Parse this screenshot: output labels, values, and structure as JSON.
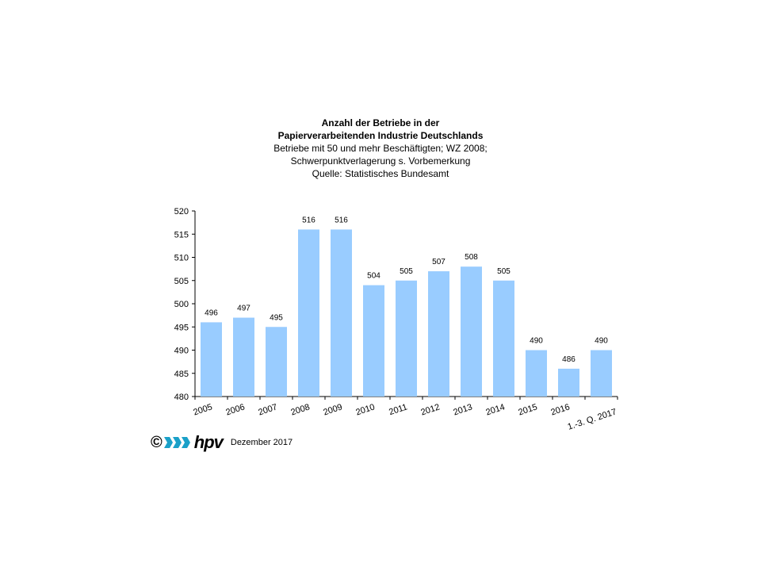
{
  "chart_data": {
    "type": "bar",
    "title": "Anzahl der Betriebe in der",
    "title_line2": "Papierverarbeitenden Industrie Deutschlands",
    "subtitle_lines": [
      "Betriebe mit 50 und mehr Beschäftigten;  WZ 2008;",
      "Schwerpunktverlagerung   s. Vorbemerkung",
      "Quelle:  Statistisches Bundesamt"
    ],
    "categories": [
      "2005",
      "2006",
      "2007",
      "2008",
      "2009",
      "2010",
      "2011",
      "2012",
      "2013",
      "2014",
      "2015",
      "2016",
      "1.-3. Q. 2017"
    ],
    "values": [
      496,
      497,
      495,
      516,
      516,
      504,
      505,
      507,
      508,
      505,
      490,
      486,
      490
    ],
    "ylim": [
      480,
      520
    ],
    "yticks": [
      480,
      485,
      490,
      495,
      500,
      505,
      510,
      515,
      520
    ],
    "bar_color": "#99ccff",
    "grid": false,
    "data_labels": true
  },
  "footer": {
    "copyright": "©",
    "logo_text": "hpv",
    "date": "Dezember 2017",
    "logo_color": "#1aa0c8"
  }
}
